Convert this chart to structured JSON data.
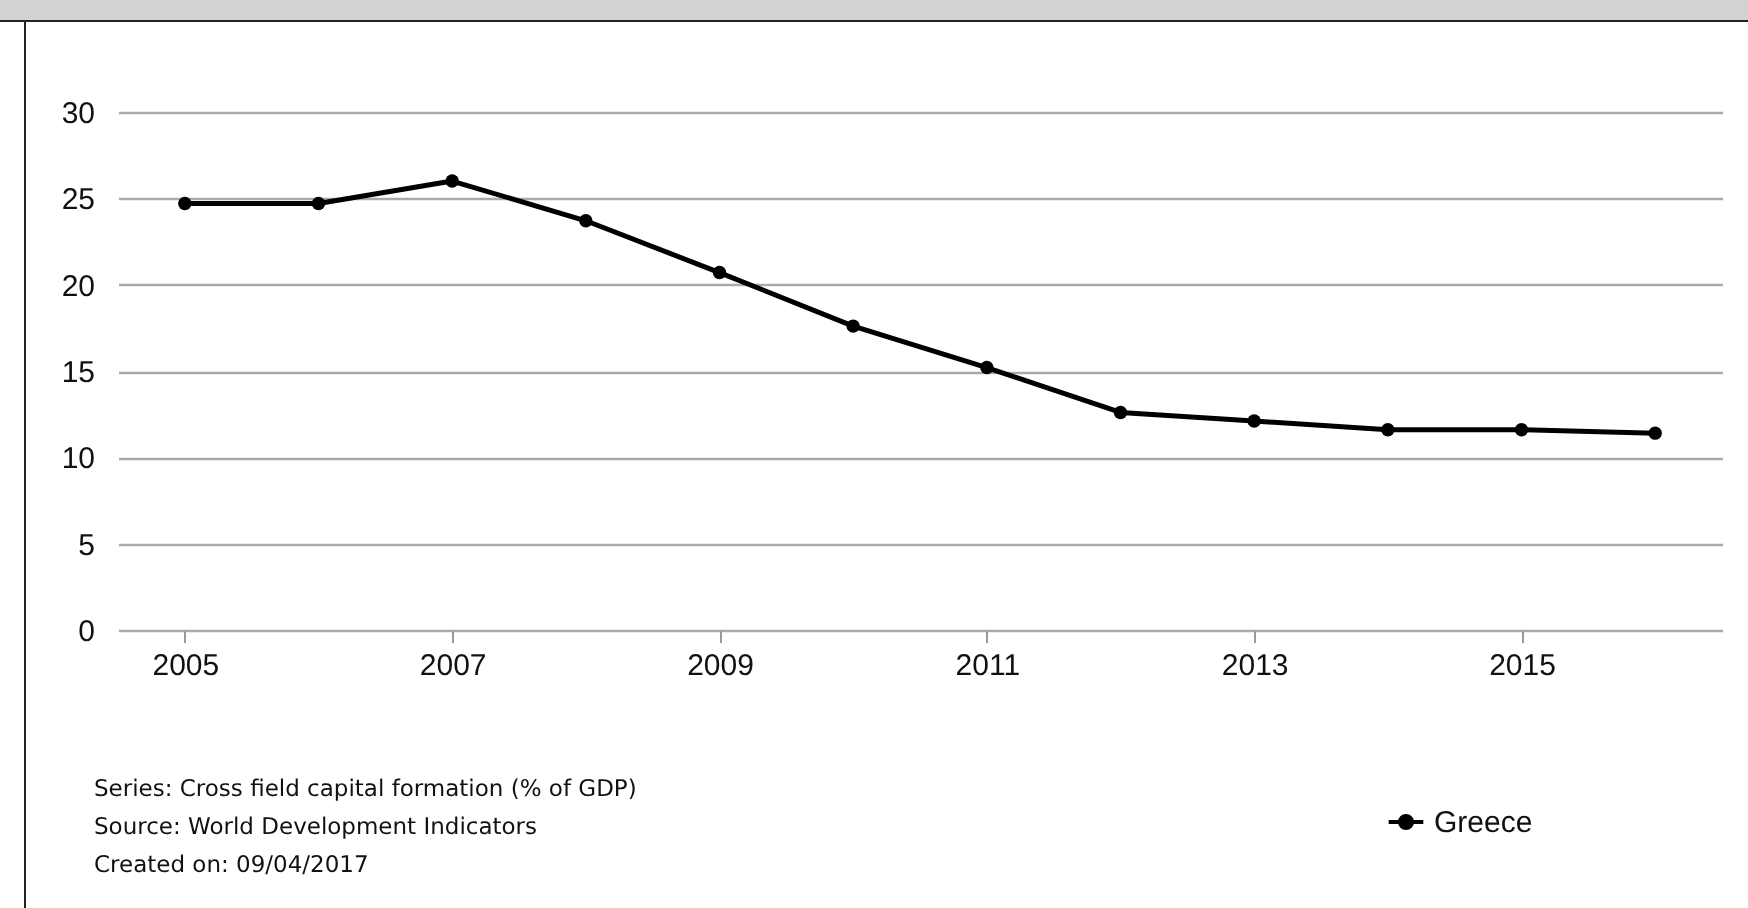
{
  "chart_data": {
    "type": "line",
    "x": [
      2005,
      2006,
      2007,
      2008,
      2009,
      2010,
      2011,
      2012,
      2013,
      2014,
      2015,
      2016
    ],
    "series": [
      {
        "name": "Greece",
        "color": "#000000",
        "values": [
          24.7,
          24.7,
          26.0,
          23.7,
          20.7,
          17.6,
          15.2,
          12.6,
          12.1,
          11.6,
          11.6,
          11.4
        ]
      }
    ],
    "xlim": [
      2004.5,
      2016.5
    ],
    "xticks": [
      2005,
      2007,
      2009,
      2011,
      2013,
      2015
    ],
    "ylim": [
      0,
      30
    ],
    "yticks": [
      0,
      5,
      10,
      15,
      20,
      25,
      30
    ],
    "grid": "y",
    "legend": "bottom right",
    "marker": "circle",
    "line_style": "solid",
    "annotations": [
      "Series: Cross field capital formation (% of GDP)",
      "Source: World Development Indicators",
      "Created on: 09/04/2017"
    ]
  }
}
